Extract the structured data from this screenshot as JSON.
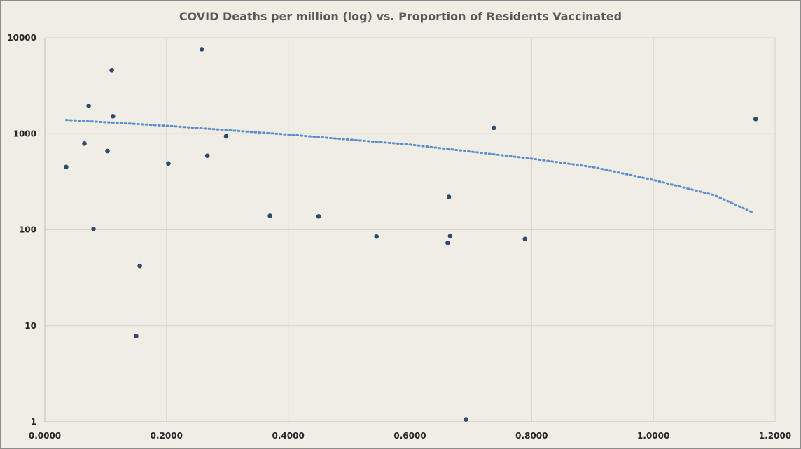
{
  "colors": {
    "background": "#efede4",
    "point": "#2e4a70",
    "trendline": "#5b8dd0",
    "grid": "#d6d4cc"
  },
  "chart_data": {
    "type": "scatter",
    "title": "COVID Deaths per million (log) vs. Proportion of Residents Vaccinated",
    "xlabel": "",
    "ylabel": "",
    "y_scale": "log",
    "xlim": [
      0,
      1.2
    ],
    "ylim": [
      1,
      10000
    ],
    "x_ticks": [
      0,
      0.2,
      0.4,
      0.6,
      0.8,
      1.0,
      1.2
    ],
    "x_tick_labels": [
      "0.0000",
      "0.2000",
      "0.4000",
      "0.6000",
      "0.8000",
      "1.0000",
      "1.2000"
    ],
    "y_ticks": [
      1,
      10,
      100,
      1000,
      10000
    ],
    "y_tick_labels": [
      "1",
      "10",
      "100",
      "1000",
      "10000"
    ],
    "series": [
      {
        "name": "Deaths per million",
        "points": [
          {
            "x": 0.035,
            "y": 450
          },
          {
            "x": 0.065,
            "y": 790
          },
          {
            "x": 0.072,
            "y": 1950
          },
          {
            "x": 0.08,
            "y": 102
          },
          {
            "x": 0.103,
            "y": 660
          },
          {
            "x": 0.11,
            "y": 4600
          },
          {
            "x": 0.112,
            "y": 1520
          },
          {
            "x": 0.15,
            "y": 7.8
          },
          {
            "x": 0.156,
            "y": 42
          },
          {
            "x": 0.203,
            "y": 490
          },
          {
            "x": 0.258,
            "y": 7600
          },
          {
            "x": 0.267,
            "y": 590
          },
          {
            "x": 0.298,
            "y": 940
          },
          {
            "x": 0.37,
            "y": 140
          },
          {
            "x": 0.45,
            "y": 138
          },
          {
            "x": 0.545,
            "y": 85
          },
          {
            "x": 0.662,
            "y": 73
          },
          {
            "x": 0.664,
            "y": 220
          },
          {
            "x": 0.666,
            "y": 86
          },
          {
            "x": 0.692,
            "y": 1.06
          },
          {
            "x": 0.738,
            "y": 1150
          },
          {
            "x": 0.789,
            "y": 80
          },
          {
            "x": 1.168,
            "y": 1420
          }
        ]
      }
    ],
    "trendline": {
      "type": "dotted",
      "points": [
        {
          "x": 0.035,
          "y": 1390
        },
        {
          "x": 0.2,
          "y": 1210
        },
        {
          "x": 0.4,
          "y": 980
        },
        {
          "x": 0.6,
          "y": 770
        },
        {
          "x": 0.8,
          "y": 550
        },
        {
          "x": 0.9,
          "y": 450
        },
        {
          "x": 1.0,
          "y": 330
        },
        {
          "x": 1.1,
          "y": 230
        },
        {
          "x": 1.165,
          "y": 150
        }
      ]
    }
  }
}
